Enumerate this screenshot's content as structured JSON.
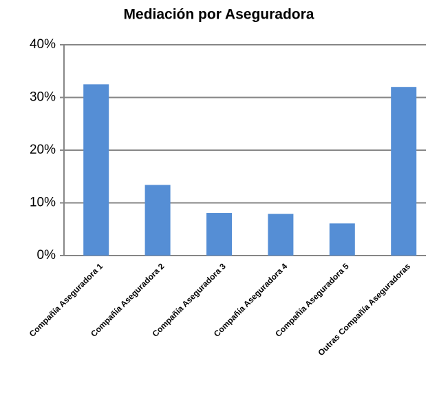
{
  "chart_data": {
    "type": "bar",
    "title": "Mediación por Aseguradora",
    "categories": [
      "Compañía Aseguradora 1",
      "Compañía Aseguradora 2",
      "Compañía Aseguradora 3",
      "Compañía Aseguradora 4",
      "Compañía Aseguradora 5",
      "Outras Compañía Aseguradoras"
    ],
    "values": [
      32.5,
      13.4,
      8.1,
      7.9,
      6.1,
      32.0
    ],
    "color": "#558ed5",
    "ylim": [
      0,
      40
    ],
    "yticks": [
      {
        "value": 0,
        "label": "0%"
      },
      {
        "value": 10,
        "label": "10%"
      },
      {
        "value": 20,
        "label": "20%"
      },
      {
        "value": 30,
        "label": "30%"
      },
      {
        "value": 40,
        "label": "40%"
      }
    ],
    "grid": true
  }
}
